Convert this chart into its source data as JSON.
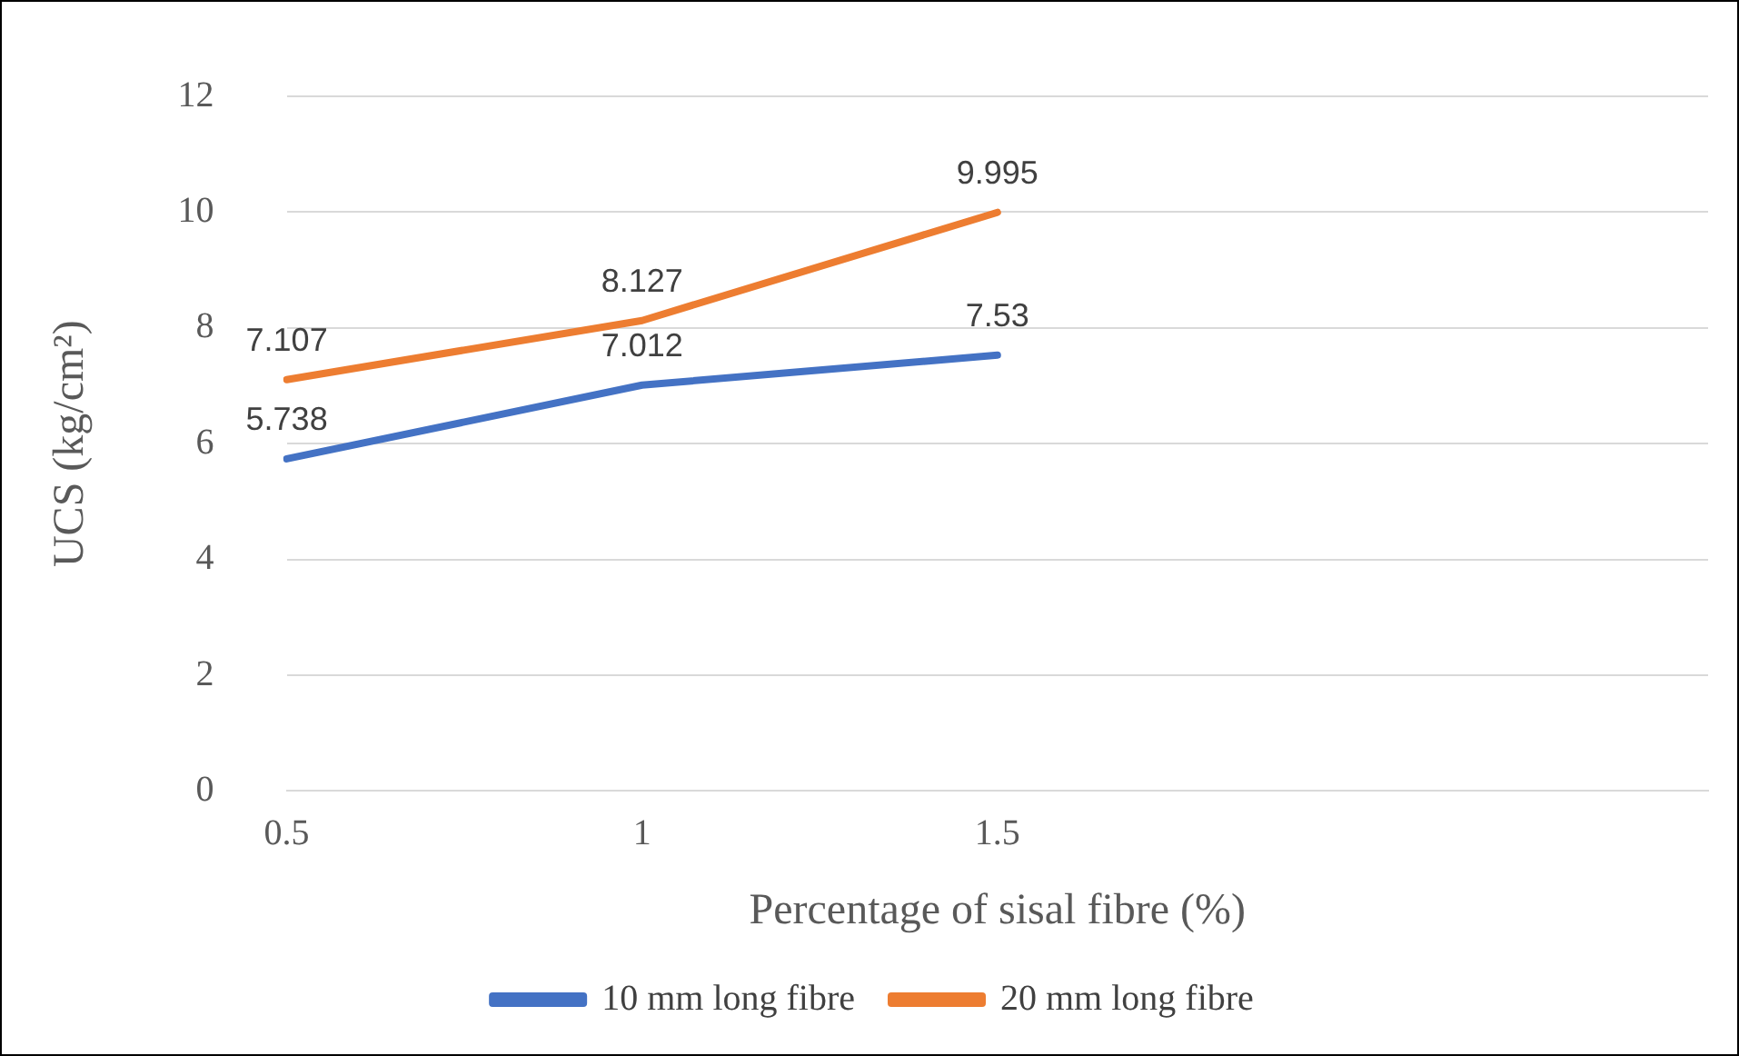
{
  "chart_data": {
    "type": "line",
    "xlabel": "Percentage of sisal fibre (%)",
    "ylabel": "UCS (kg/cm²)",
    "categories": [
      "0.5",
      "1",
      "1.5",
      null,
      null
    ],
    "series": [
      {
        "name": "10 mm long fibre",
        "color": "#4472c4",
        "values": [
          5.738,
          7.012,
          7.53,
          null,
          null
        ]
      },
      {
        "name": "20 mm long fibre",
        "color": "#ed7d31",
        "values": [
          7.107,
          8.127,
          9.995,
          null,
          null
        ]
      }
    ],
    "ylim": [
      0,
      12
    ],
    "yticks": [
      0,
      2,
      4,
      6,
      8,
      10,
      12
    ],
    "grid": "y",
    "legend": "bottom",
    "marker": "none",
    "line_style": "solid",
    "data_labels": true
  }
}
